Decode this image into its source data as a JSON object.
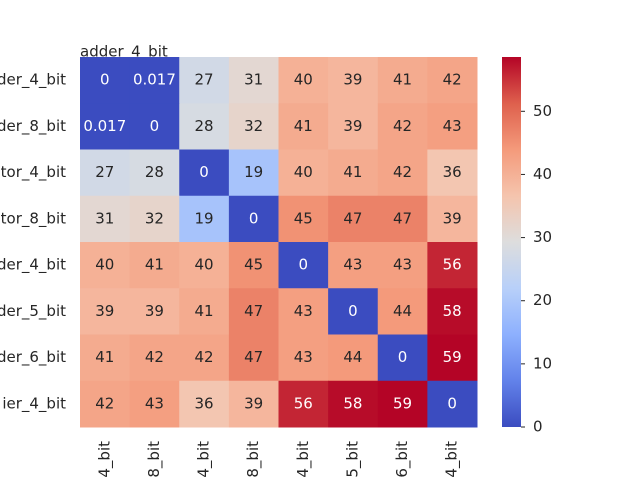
{
  "chart_data": {
    "type": "heatmap",
    "title": "adder_4_bit",
    "x_categories": [
      "4_bit",
      "8_bit",
      "4_bit",
      "8_bit",
      "4_bit",
      "5_bit",
      "6_bit",
      "4_bit"
    ],
    "y_categories": [
      "dder_4_bit",
      "dder_8_bit",
      "tor_4_bit",
      "tor_8_bit",
      "dder_4_bit",
      "dder_5_bit",
      "dder_6_bit",
      "ier_4_bit"
    ],
    "z": [
      [
        0,
        0.017,
        27,
        31,
        40,
        39,
        41,
        42
      ],
      [
        0.017,
        0,
        28,
        32,
        41,
        39,
        42,
        43
      ],
      [
        27,
        28,
        0,
        19,
        40,
        41,
        42,
        36
      ],
      [
        31,
        32,
        19,
        0,
        45,
        47,
        47,
        39
      ],
      [
        40,
        41,
        40,
        45,
        0,
        43,
        43,
        56
      ],
      [
        39,
        39,
        41,
        47,
        43,
        0,
        44,
        58
      ],
      [
        41,
        42,
        42,
        47,
        43,
        44,
        0,
        59
      ],
      [
        42,
        43,
        36,
        39,
        56,
        58,
        59,
        0
      ]
    ],
    "colormap": "coolwarm",
    "clim": [
      0,
      58.6
    ],
    "cticks": [
      0,
      10,
      20,
      30,
      40,
      50
    ]
  }
}
